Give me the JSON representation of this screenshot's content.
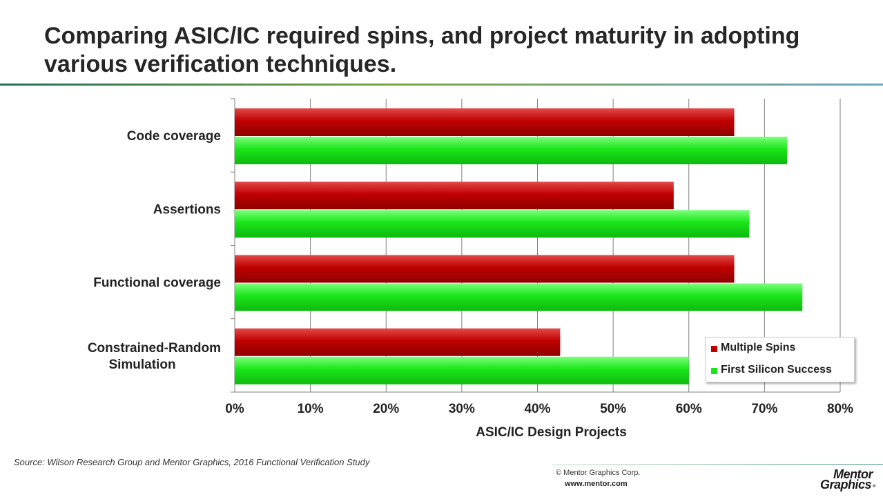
{
  "slide": {
    "title": "Comparing ASIC/IC required spins, and project maturity in adopting various verification techniques.",
    "source": "Source:  Wilson Research Group and Mentor Graphics, 2016 Functional Verification Study",
    "copyright": "© Mentor Graphics Corp.",
    "website": "www.mentor.com",
    "logo_line1": "Mentor",
    "logo_line2": "Graphics",
    "logo_reg": "®"
  },
  "chart_data": {
    "type": "bar",
    "orientation": "horizontal",
    "categories": [
      "Code coverage",
      "Assertions",
      "Functional coverage",
      "Constrained-Random Simulation"
    ],
    "series": [
      {
        "name": "Multiple Spins",
        "color": "#c00000",
        "values": [
          0.66,
          0.58,
          0.66,
          0.43
        ]
      },
      {
        "name": "First Silicon Success",
        "color": "#19e619",
        "values": [
          0.73,
          0.68,
          0.75,
          0.6
        ]
      }
    ],
    "xlabel": "ASIC/IC Design Projects",
    "xlim": [
      0,
      0.8
    ],
    "xticks": [
      "0%",
      "10%",
      "20%",
      "30%",
      "40%",
      "50%",
      "60%",
      "70%",
      "80%"
    ],
    "grid": true,
    "legend_position": "bottom-right"
  }
}
